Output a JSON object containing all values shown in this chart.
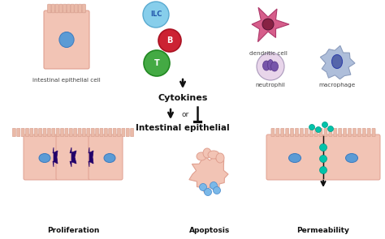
{
  "bg_color": "#ffffff",
  "cell_color": "#f2c4b5",
  "cell_border": "#e0a090",
  "nucleus_color": "#5b9bd5",
  "nucleus_border": "#3a7abf",
  "ILC_color": "#87ceeb",
  "ILC_border": "#5aaad0",
  "ILC_text": "#2255aa",
  "B_color": "#cc2233",
  "B_border": "#aa1122",
  "T_color": "#44aa44",
  "T_border": "#228822",
  "dendritic_color": "#d45585",
  "dendritic_border": "#aa3366",
  "dendritic_nucleus": "#882244",
  "neutrophil_bg": "#e8d5ea",
  "neutrophil_border": "#aa99bb",
  "neutrophil_nucleus": "#7755aa",
  "neutrophil_nucleus_border": "#553388",
  "macrophage_bg": "#aabbd8",
  "macrophage_border": "#8899bb",
  "macrophage_nucleus": "#5566aa",
  "macrophage_nucleus_border": "#3344aa",
  "proliferation_purple": "#22006a",
  "permeability_teal": "#00c4aa",
  "permeability_teal_border": "#009988",
  "arrow_color": "#111111",
  "microvilli_color": "#eabaa8",
  "villi_border_color": "#d8a090",
  "label_epithelial": "intestinal epithelial cell",
  "label_ILC": "ILC",
  "label_B": "B",
  "label_T": "T",
  "label_dendritic": "dendritic cell",
  "label_neutrophil": "neutrophil",
  "label_macrophage": "macrophage",
  "text_cytokines": "Cytokines",
  "text_or": "or",
  "text_intestinal": "Intestinal epithelial",
  "text_proliferation": "Proliferation",
  "text_apoptosis": "Apoptosis",
  "text_permeability": "Permeability"
}
